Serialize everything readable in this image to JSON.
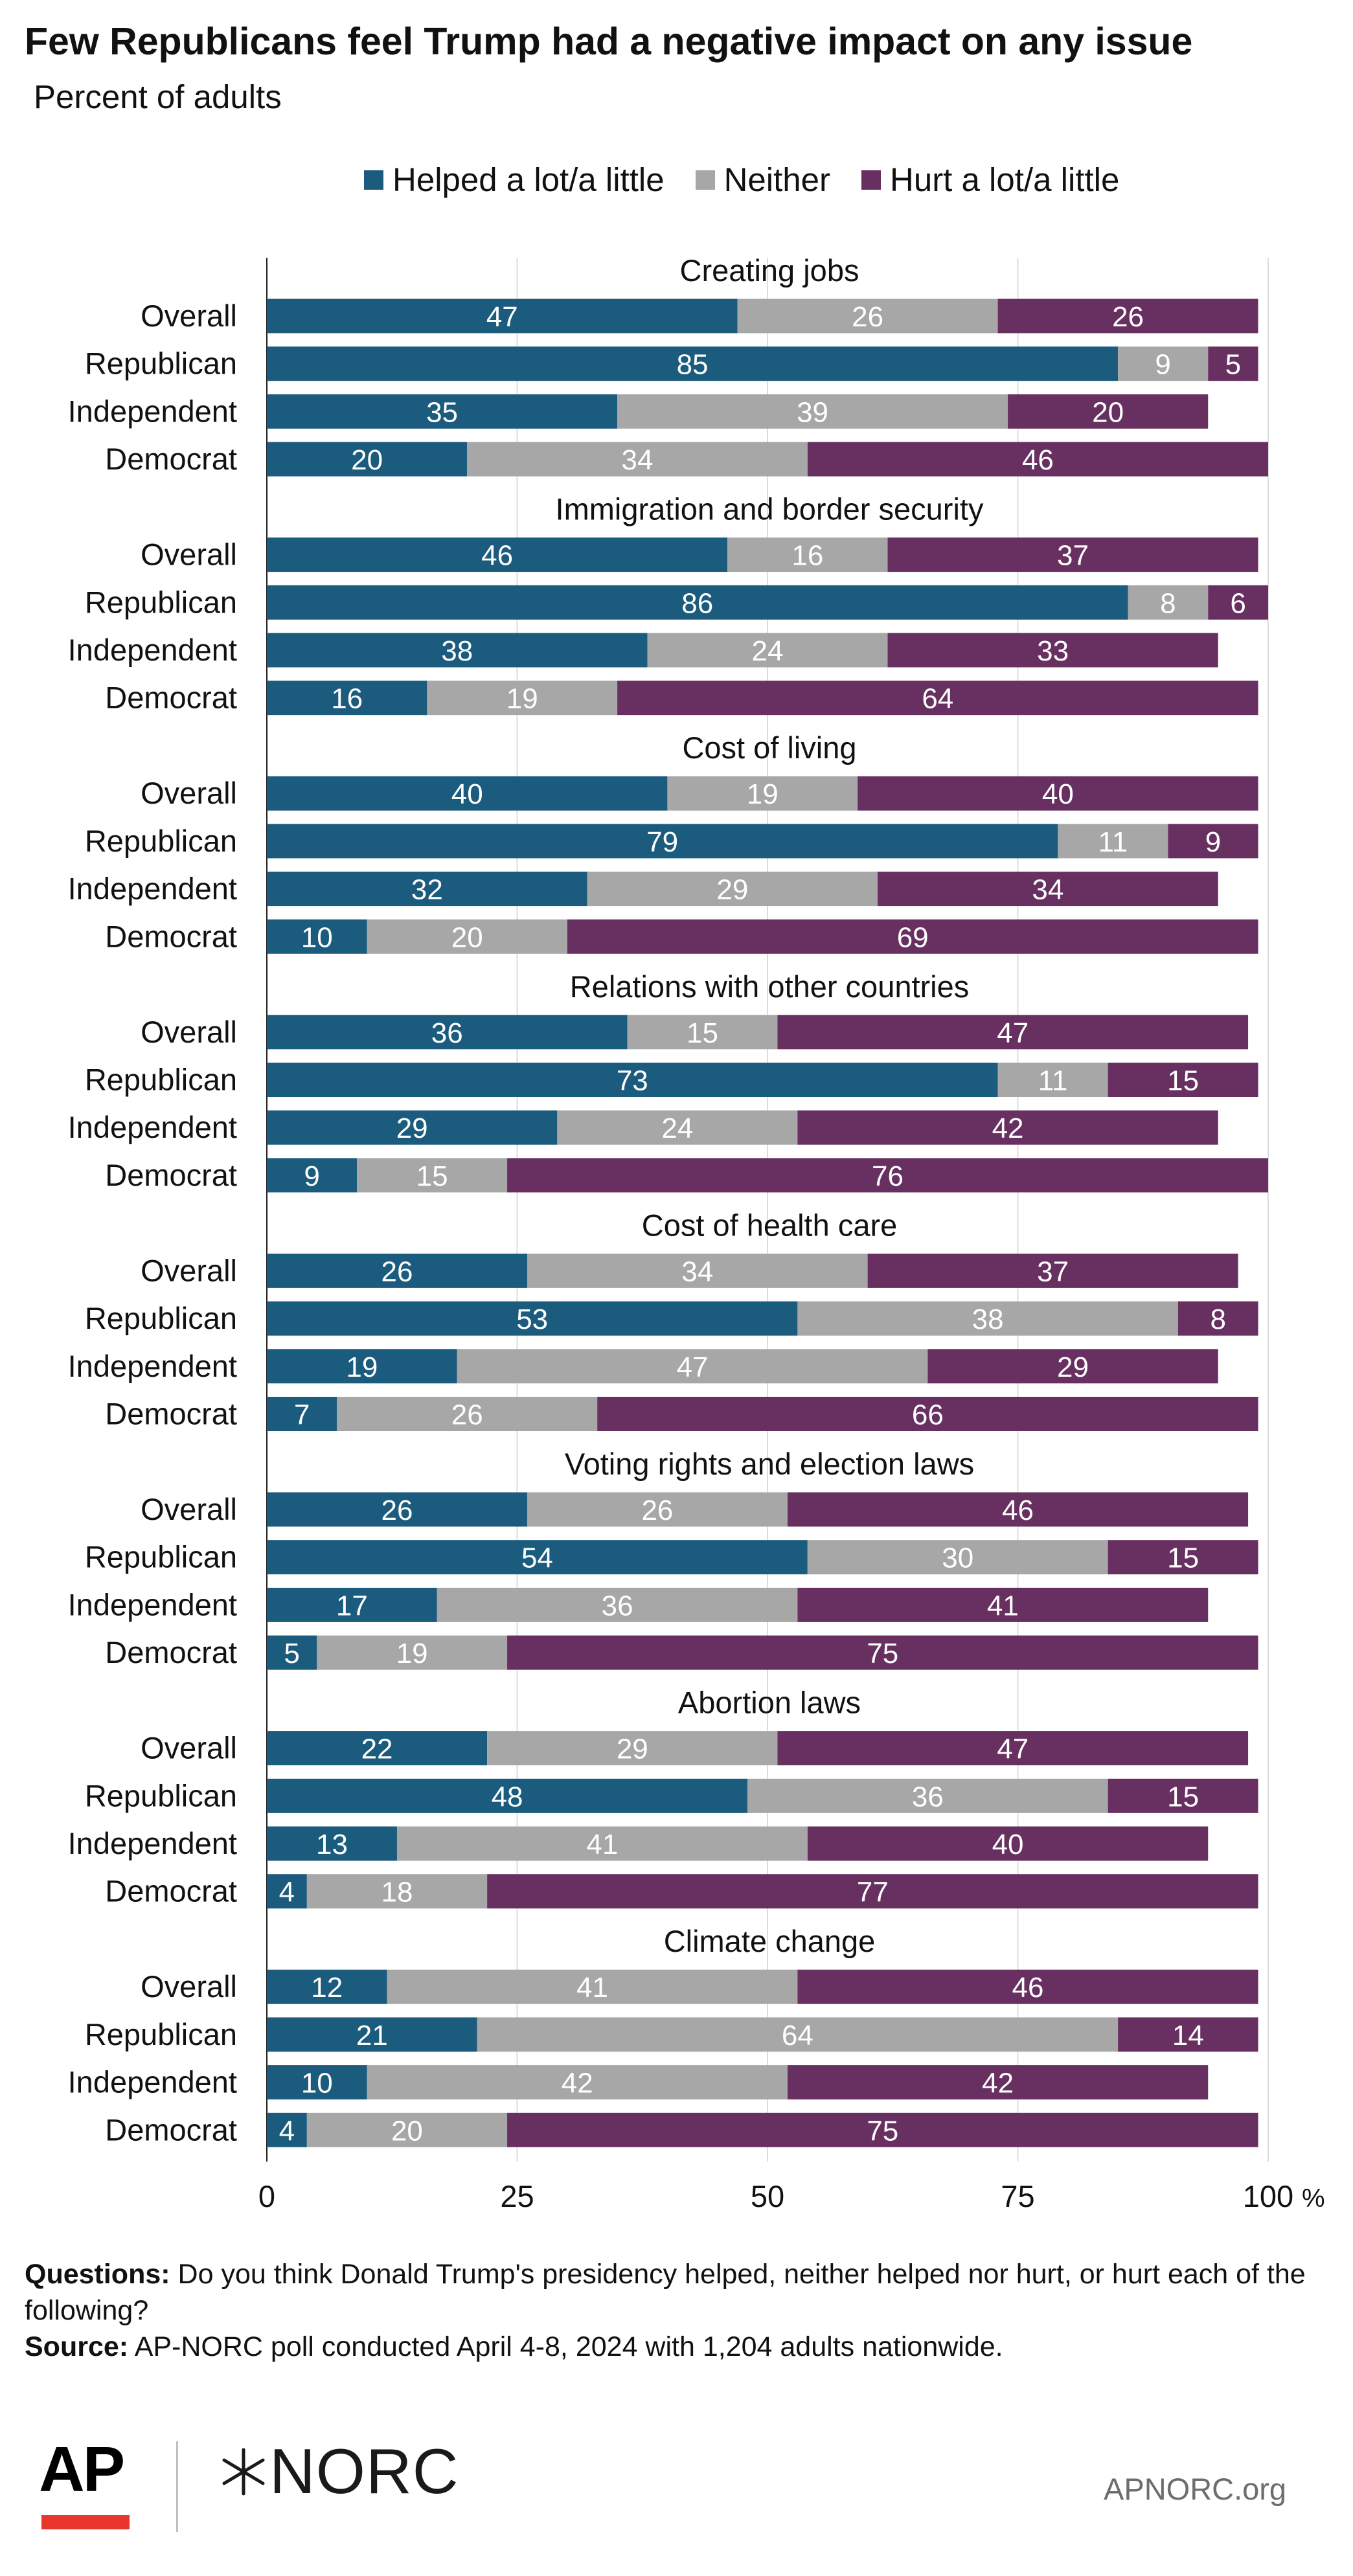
{
  "header": {
    "title": "Few Republicans feel Trump had a negative impact on any issue",
    "subtitle": "Percent of adults"
  },
  "legend": [
    {
      "label": "Helped a lot/a little",
      "color": "#1b5b7e"
    },
    {
      "label": "Neither",
      "color": "#a7a7a7"
    },
    {
      "label": "Hurt a lot/a little",
      "color": "#673061"
    }
  ],
  "chart_data": {
    "type": "bar",
    "orientation": "horizontal",
    "stacked": true,
    "xlim": [
      0,
      100
    ],
    "xticks": [
      "0",
      "25",
      "50",
      "75",
      "100"
    ],
    "x_unit": "%",
    "grid": true,
    "legend_position": "top",
    "series_names": [
      "Helped a lot/a little",
      "Neither",
      "Hurt a lot/a little"
    ],
    "series_colors": [
      "#1b5b7e",
      "#a7a7a7",
      "#673061"
    ],
    "groups": [
      {
        "title": "Creating jobs",
        "rows": [
          {
            "label": "Overall",
            "values": [
              47,
              26,
              26
            ]
          },
          {
            "label": "Republican",
            "values": [
              85,
              9,
              5
            ]
          },
          {
            "label": "Independent",
            "values": [
              35,
              39,
              20
            ]
          },
          {
            "label": "Democrat",
            "values": [
              20,
              34,
              46
            ]
          }
        ]
      },
      {
        "title": "Immigration and border security",
        "rows": [
          {
            "label": "Overall",
            "values": [
              46,
              16,
              37
            ]
          },
          {
            "label": "Republican",
            "values": [
              86,
              8,
              6
            ]
          },
          {
            "label": "Independent",
            "values": [
              38,
              24,
              33
            ]
          },
          {
            "label": "Democrat",
            "values": [
              16,
              19,
              64
            ]
          }
        ]
      },
      {
        "title": "Cost of living",
        "rows": [
          {
            "label": "Overall",
            "values": [
              40,
              19,
              40
            ]
          },
          {
            "label": "Republican",
            "values": [
              79,
              11,
              9
            ]
          },
          {
            "label": "Independent",
            "values": [
              32,
              29,
              34
            ]
          },
          {
            "label": "Democrat",
            "values": [
              10,
              20,
              69
            ]
          }
        ]
      },
      {
        "title": "Relations with other countries",
        "rows": [
          {
            "label": "Overall",
            "values": [
              36,
              15,
              47
            ]
          },
          {
            "label": "Republican",
            "values": [
              73,
              11,
              15
            ]
          },
          {
            "label": "Independent",
            "values": [
              29,
              24,
              42
            ]
          },
          {
            "label": "Democrat",
            "values": [
              9,
              15,
              76
            ]
          }
        ]
      },
      {
        "title": "Cost of health care",
        "rows": [
          {
            "label": "Overall",
            "values": [
              26,
              34,
              37
            ]
          },
          {
            "label": "Republican",
            "values": [
              53,
              38,
              8
            ]
          },
          {
            "label": "Independent",
            "values": [
              19,
              47,
              29
            ]
          },
          {
            "label": "Democrat",
            "values": [
              7,
              26,
              66
            ]
          }
        ]
      },
      {
        "title": "Voting rights and election laws",
        "rows": [
          {
            "label": "Overall",
            "values": [
              26,
              26,
              46
            ]
          },
          {
            "label": "Republican",
            "values": [
              54,
              30,
              15
            ]
          },
          {
            "label": "Independent",
            "values": [
              17,
              36,
              41
            ]
          },
          {
            "label": "Democrat",
            "values": [
              5,
              19,
              75
            ]
          }
        ]
      },
      {
        "title": "Abortion laws",
        "rows": [
          {
            "label": "Overall",
            "values": [
              22,
              29,
              47
            ]
          },
          {
            "label": "Republican",
            "values": [
              48,
              36,
              15
            ]
          },
          {
            "label": "Independent",
            "values": [
              13,
              41,
              40
            ]
          },
          {
            "label": "Democrat",
            "values": [
              4,
              18,
              77
            ]
          }
        ]
      },
      {
        "title": "Climate change",
        "rows": [
          {
            "label": "Overall",
            "values": [
              12,
              41,
              46
            ]
          },
          {
            "label": "Republican",
            "values": [
              21,
              64,
              14
            ]
          },
          {
            "label": "Independent",
            "values": [
              10,
              42,
              42
            ]
          },
          {
            "label": "Democrat",
            "values": [
              4,
              20,
              75
            ]
          }
        ]
      }
    ]
  },
  "notes": {
    "questions_label": "Questions:",
    "questions_text": "Do you think Donald Trump's presidency helped, neither helped nor hurt, or hurt each of the following?",
    "source_label": "Source:",
    "source_text": "AP-NORC poll conducted April 4-8, 2024 with 1,204 adults nationwide."
  },
  "footer": {
    "ap_logo": "AP",
    "norc_logo": "NORC",
    "url": "APNORC.org"
  }
}
